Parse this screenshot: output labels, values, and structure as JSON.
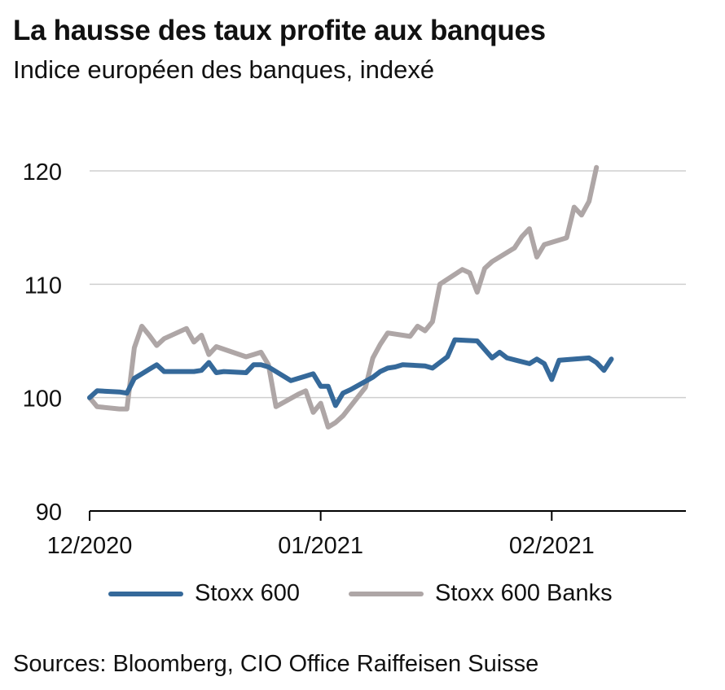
{
  "title": "La hausse des taux profite aux banques",
  "subtitle": "Indice européen des banques, indexé",
  "source": "Sources: Bloomberg, CIO Office Raiffeisen Suisse",
  "colors": {
    "stoxx600": "#35699a",
    "banks": "#aea6a6",
    "grid": "#cfcfcf",
    "axis": "#000000"
  },
  "chart_data": {
    "type": "line",
    "ylim": [
      90,
      120
    ],
    "yticks": [
      90,
      100,
      110,
      120
    ],
    "xlim": [
      "2020-12-01",
      "2021-02-19"
    ],
    "xticks": [
      {
        "date": "2020-12-01",
        "label": "12/2020"
      },
      {
        "date": "2021-01-01",
        "label": "01/2021"
      },
      {
        "date": "2021-02-01",
        "label": "02/2021"
      }
    ],
    "grid": true,
    "legend_position": "bottom",
    "series": [
      {
        "name": "Stoxx 600",
        "key": "stoxx600",
        "points": [
          [
            "2020-12-01",
            100.0
          ],
          [
            "2020-12-02",
            100.6
          ],
          [
            "2020-12-05",
            100.5
          ],
          [
            "2020-12-06",
            100.4
          ],
          [
            "2020-12-07",
            101.7
          ],
          [
            "2020-12-08",
            102.1
          ],
          [
            "2020-12-09",
            102.5
          ],
          [
            "2020-12-10",
            102.9
          ],
          [
            "2020-12-11",
            102.3
          ],
          [
            "2020-12-14",
            102.3
          ],
          [
            "2020-12-15",
            102.3
          ],
          [
            "2020-12-16",
            102.4
          ],
          [
            "2020-12-17",
            103.1
          ],
          [
            "2020-12-18",
            102.2
          ],
          [
            "2020-12-19",
            102.3
          ],
          [
            "2020-12-22",
            102.2
          ],
          [
            "2020-12-23",
            102.9
          ],
          [
            "2020-12-24",
            102.9
          ],
          [
            "2020-12-25",
            102.7
          ],
          [
            "2020-12-28",
            101.5
          ],
          [
            "2020-12-29",
            101.7
          ],
          [
            "2020-12-30",
            101.9
          ],
          [
            "2020-12-31",
            102.1
          ],
          [
            "2021-01-01",
            101.0
          ],
          [
            "2021-01-02",
            101.0
          ],
          [
            "2021-01-03",
            99.3
          ],
          [
            "2021-01-04",
            100.4
          ],
          [
            "2021-01-05",
            100.7
          ],
          [
            "2021-01-08",
            101.8
          ],
          [
            "2021-01-09",
            102.3
          ],
          [
            "2021-01-10",
            102.6
          ],
          [
            "2021-01-11",
            102.7
          ],
          [
            "2021-01-12",
            102.9
          ],
          [
            "2021-01-15",
            102.8
          ],
          [
            "2021-01-16",
            102.6
          ],
          [
            "2021-01-18",
            103.6
          ],
          [
            "2021-01-19",
            105.1
          ],
          [
            "2021-01-22",
            105.0
          ],
          [
            "2021-01-24",
            103.5
          ],
          [
            "2021-01-25",
            104.0
          ],
          [
            "2021-01-26",
            103.5
          ],
          [
            "2021-01-29",
            103.0
          ],
          [
            "2021-01-30",
            103.4
          ],
          [
            "2021-01-31",
            103.0
          ],
          [
            "2021-02-01",
            101.6
          ],
          [
            "2021-02-02",
            103.3
          ],
          [
            "2021-02-06",
            103.5
          ],
          [
            "2021-02-07",
            103.1
          ],
          [
            "2021-02-08",
            102.4
          ],
          [
            "2021-02-09",
            103.4
          ]
        ]
      },
      {
        "name": "Stoxx 600 Banks",
        "key": "banks",
        "points": [
          [
            "2020-12-01",
            100.0
          ],
          [
            "2020-12-02",
            99.2
          ],
          [
            "2020-12-05",
            99.0
          ],
          [
            "2020-12-06",
            99.0
          ],
          [
            "2020-12-07",
            104.4
          ],
          [
            "2020-12-08",
            106.3
          ],
          [
            "2020-12-09",
            105.5
          ],
          [
            "2020-12-10",
            104.6
          ],
          [
            "2020-12-11",
            105.2
          ],
          [
            "2020-12-14",
            106.1
          ],
          [
            "2020-12-15",
            104.9
          ],
          [
            "2020-12-16",
            105.5
          ],
          [
            "2020-12-17",
            103.8
          ],
          [
            "2020-12-18",
            104.5
          ],
          [
            "2020-12-22",
            103.6
          ],
          [
            "2020-12-23",
            103.8
          ],
          [
            "2020-12-24",
            104.0
          ],
          [
            "2020-12-25",
            102.9
          ],
          [
            "2020-12-26",
            99.2
          ],
          [
            "2020-12-29",
            100.3
          ],
          [
            "2020-12-30",
            100.6
          ],
          [
            "2020-12-31",
            98.7
          ],
          [
            "2021-01-01",
            99.5
          ],
          [
            "2021-01-02",
            97.4
          ],
          [
            "2021-01-03",
            97.8
          ],
          [
            "2021-01-04",
            98.4
          ],
          [
            "2021-01-07",
            100.9
          ],
          [
            "2021-01-08",
            103.5
          ],
          [
            "2021-01-09",
            104.7
          ],
          [
            "2021-01-10",
            105.7
          ],
          [
            "2021-01-13",
            105.4
          ],
          [
            "2021-01-14",
            106.3
          ],
          [
            "2021-01-15",
            105.9
          ],
          [
            "2021-01-16",
            106.7
          ],
          [
            "2021-01-17",
            110.0
          ],
          [
            "2021-01-20",
            111.3
          ],
          [
            "2021-01-21",
            111.0
          ],
          [
            "2021-01-22",
            109.3
          ],
          [
            "2021-01-23",
            111.4
          ],
          [
            "2021-01-24",
            112.0
          ],
          [
            "2021-01-27",
            113.2
          ],
          [
            "2021-01-28",
            114.2
          ],
          [
            "2021-01-29",
            114.9
          ],
          [
            "2021-01-30",
            112.4
          ],
          [
            "2021-01-31",
            113.5
          ],
          [
            "2021-02-03",
            114.1
          ],
          [
            "2021-02-04",
            116.8
          ],
          [
            "2021-02-05",
            116.1
          ],
          [
            "2021-02-06",
            117.3
          ],
          [
            "2021-02-07",
            120.3
          ]
        ]
      }
    ]
  }
}
